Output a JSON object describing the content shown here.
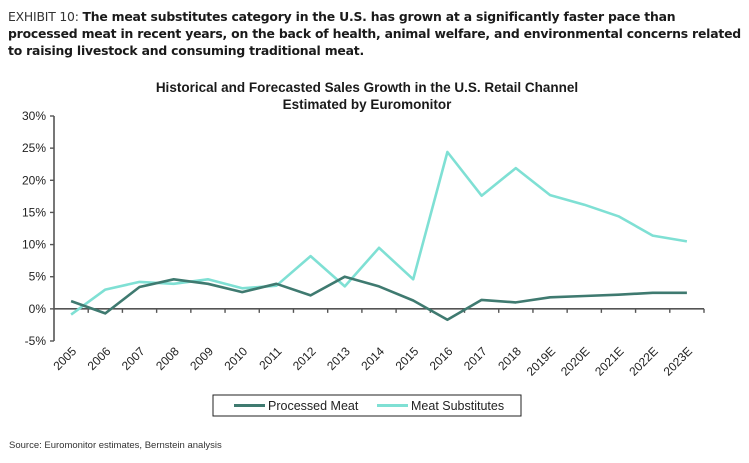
{
  "header": {
    "exhibit_label": "EXHIBIT 10:",
    "exhibit_text": "The meat substitutes category in the U.S. has grown at a significantly faster pace than processed meat in recent years, on the back of health, animal welfare, and environmental concerns related to raising livestock and consuming traditional meat."
  },
  "source": "Source: Euromonitor estimates, Bernstein analysis",
  "colors": {
    "processed_meat": "#3f7a70",
    "meat_substitutes": "#7fe0d4",
    "axis": "#555555"
  },
  "chart_data": {
    "type": "line",
    "title": "Historical and Forecasted Sales Growth in the U.S. Retail Channel",
    "subtitle": "Estimated by Euromonitor",
    "xlabel": "",
    "ylabel": "",
    "ylim": [
      -5,
      30
    ],
    "yticks": [
      "30%",
      "25%",
      "20%",
      "15%",
      "10%",
      "5%",
      "0%",
      "-5%"
    ],
    "ytick_values": [
      30,
      25,
      20,
      15,
      10,
      5,
      0,
      -5
    ],
    "categories": [
      "2005",
      "2006",
      "2007",
      "2008",
      "2009",
      "2010",
      "2011",
      "2012",
      "2013",
      "2014",
      "2015",
      "2016",
      "2017",
      "2018",
      "2019E",
      "2020E",
      "2021E",
      "2022E",
      "2023E"
    ],
    "grid": false,
    "legend_position": "bottom",
    "series": [
      {
        "name": "Processed Meat",
        "values": [
          1.2,
          -0.7,
          3.4,
          4.6,
          3.9,
          2.6,
          3.9,
          2.1,
          5.0,
          3.5,
          1.3,
          -1.7,
          1.4,
          1.0,
          1.8,
          2.0,
          2.2,
          2.5,
          2.5
        ]
      },
      {
        "name": "Meat Substitutes",
        "values": [
          -0.9,
          3.0,
          4.2,
          3.9,
          4.6,
          3.2,
          3.6,
          8.2,
          3.5,
          9.5,
          4.6,
          24.4,
          17.6,
          21.9,
          17.7,
          16.2,
          14.4,
          11.4,
          10.5
        ]
      }
    ]
  }
}
